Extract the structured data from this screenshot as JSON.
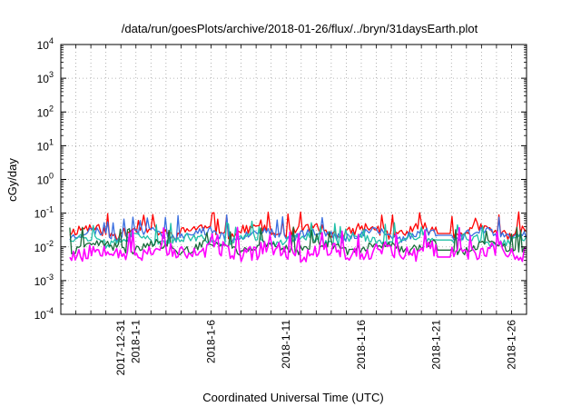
{
  "chart_data": {
    "type": "line",
    "title": "/data/run/goesPlots/archive/2018-01-26/flux/../bryn/31daysEarth.plot",
    "xlabel": "Coordinated Universal Time (UTC)",
    "ylabel": "cGy/day",
    "yscale": "log",
    "ylim": [
      0.0001,
      10000
    ],
    "xlim_days": [
      0,
      31
    ],
    "grid": true,
    "y_ticks": [
      {
        "base": "10",
        "exp": "4",
        "value": 10000
      },
      {
        "base": "10",
        "exp": "3",
        "value": 1000
      },
      {
        "base": "10",
        "exp": "2",
        "value": 100
      },
      {
        "base": "10",
        "exp": "1",
        "value": 10
      },
      {
        "base": "10",
        "exp": "0",
        "value": 1
      },
      {
        "base": "10",
        "exp": "-1",
        "value": 0.1
      },
      {
        "base": "10",
        "exp": "-2",
        "value": 0.01
      },
      {
        "base": "10",
        "exp": "-3",
        "value": 0.001
      },
      {
        "base": "10",
        "exp": "-4",
        "value": 0.0001
      }
    ],
    "x_ticks": [
      {
        "label": "2017-12-31",
        "day": 4.0
      },
      {
        "label": "2018-1-1",
        "day": 5.0
      },
      {
        "label": "2018-1-6",
        "day": 10.0
      },
      {
        "label": "2018-1-11",
        "day": 15.0
      },
      {
        "label": "2018-1-16",
        "day": 20.0
      },
      {
        "label": "2018-1-21",
        "day": 25.0
      },
      {
        "label": "2018-1-26",
        "day": 30.0
      }
    ],
    "data_gap_days": [
      25.0,
      26.0
    ],
    "series": [
      {
        "name": "red",
        "color": "#ff0000",
        "base": 0.03,
        "noise": 0.35,
        "spike": 0.085,
        "gap_value": 0.025,
        "seed": 11
      },
      {
        "name": "blue",
        "color": "#3a6fe0",
        "base": 0.024,
        "noise": 0.3,
        "spike": 0.07,
        "gap_value": 0.022,
        "seed": 23
      },
      {
        "name": "teal",
        "color": "#20c0a8",
        "base": 0.016,
        "noise": 0.28,
        "spike": 0.045,
        "gap_value": 0.016,
        "seed": 37
      },
      {
        "name": "dark-green",
        "color": "#1a6a3a",
        "base": 0.01,
        "noise": 0.3,
        "spike": 0.03,
        "gap_value": 0.008,
        "seed": 41
      },
      {
        "name": "magenta",
        "color": "#ff00ff",
        "base": 0.0075,
        "noise": 0.55,
        "spike": 0.03,
        "gap_value": 0.005,
        "seed": 53
      }
    ]
  }
}
